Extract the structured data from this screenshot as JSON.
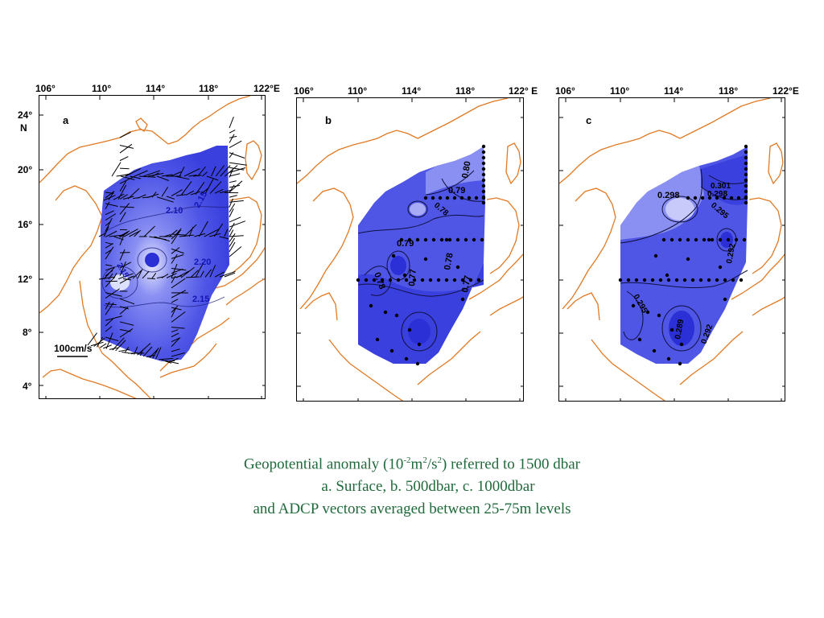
{
  "maps": [
    {
      "panel_label": "a",
      "lon_labels": [
        "106°",
        "110°",
        "114°",
        "118°",
        "122°E"
      ],
      "lat_labels": [
        "24°",
        "20°",
        "16°",
        "12°",
        "8°",
        "4°"
      ],
      "lat_unit": "N",
      "scale_label": "100cm/s",
      "contour_labels": [
        "2.10",
        "2.15",
        "2.20",
        "2.15",
        "2.15"
      ]
    },
    {
      "panel_label": "b",
      "lon_labels": [
        "106°",
        "110°",
        "114°",
        "118°",
        "122° E"
      ],
      "contour_labels": [
        "0.80",
        "0.79",
        "0.78",
        "0.79",
        "0.78",
        "0.77",
        "0.78",
        "0.77"
      ]
    },
    {
      "panel_label": "c",
      "lon_labels": [
        "106°",
        "110°",
        "114°",
        "118°",
        "122°E"
      ],
      "contour_labels": [
        "0.298",
        "0.301",
        "0.298",
        "0.295",
        "0.292",
        "0.295",
        "0.289",
        "0.292"
      ]
    }
  ],
  "caption": {
    "line1_pre": "Geopotential anomaly (10",
    "line1_sup1": "-2",
    "line1_mid": "m",
    "line1_sup2": "2",
    "line1_mid2": "/s",
    "line1_sup3": "2",
    "line1_post": ") referred to 1500 dbar",
    "line2": "a. Surface, b. 500dbar, c. 1000dbar",
    "line3": "and ADCP vectors averaged between 25-75m levels"
  },
  "colors": {
    "coastline": "#e07a25",
    "field_dark": "#2a2fd6",
    "field_mid": "#4f56e6",
    "field_light": "#8a90f2",
    "caption": "#1f6a3a"
  }
}
